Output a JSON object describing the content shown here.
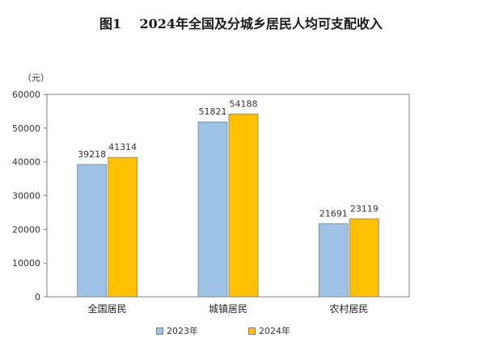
{
  "header": {
    "figure_label": "图1",
    "title": "2024年全国及分城乡居民人均可支配收入"
  },
  "chart_data": {
    "type": "bar",
    "title": "2024年全国及分城乡居民人均可支配收入",
    "unit_label": "（元）",
    "xlabel": "",
    "ylabel": "",
    "ylim": [
      0,
      60000
    ],
    "yticks": [
      0,
      10000,
      20000,
      30000,
      40000,
      50000,
      60000
    ],
    "categories": [
      "全国居民",
      "城镇居民",
      "农村居民"
    ],
    "series": [
      {
        "name": "2023年",
        "values": [
          39218,
          51821,
          21691
        ],
        "color": "#9dc3e6"
      },
      {
        "name": "2024年",
        "values": [
          41314,
          54188,
          23119
        ],
        "color": "#ffc000"
      }
    ],
    "grid": false,
    "legend": "bottom-center"
  }
}
